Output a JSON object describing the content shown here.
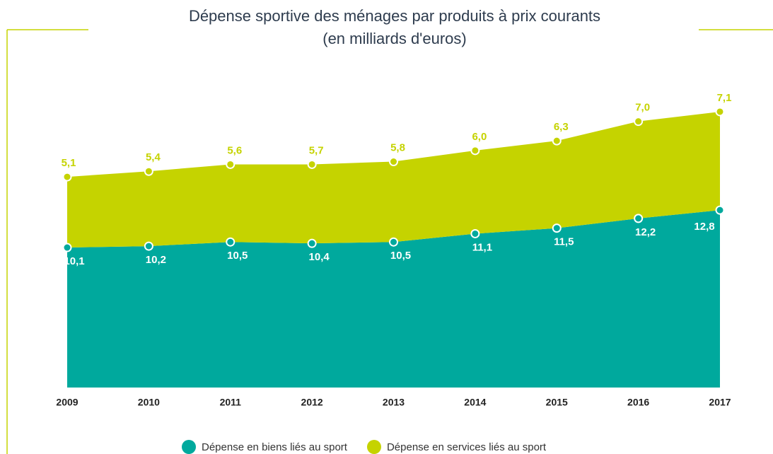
{
  "chart_data": {
    "type": "stacked-area",
    "title": "Dépense sportive des ménages par produits à prix courants",
    "subtitle": "(en milliards d'euros)",
    "categories": [
      "2009",
      "2010",
      "2011",
      "2012",
      "2013",
      "2014",
      "2015",
      "2016",
      "2017"
    ],
    "series": [
      {
        "name": "Dépense en biens liés au sport",
        "color": "#00a99d",
        "values": [
          10.1,
          10.2,
          10.5,
          10.4,
          10.5,
          11.1,
          11.5,
          12.2,
          12.8
        ],
        "value_labels": [
          "10,1",
          "10,2",
          "10,5",
          "10,4",
          "10,5",
          "11,1",
          "11,5",
          "12,2",
          "12,8"
        ]
      },
      {
        "name": "Dépense en services liés au sport",
        "color": "#c5d300",
        "values": [
          5.1,
          5.4,
          5.6,
          5.7,
          5.8,
          6.0,
          6.3,
          7.0,
          7.1
        ],
        "value_labels": [
          "5,1",
          "5,4",
          "5,6",
          "5,7",
          "5,8",
          "6,0",
          "6,3",
          "7,0",
          "7,1"
        ]
      }
    ]
  }
}
